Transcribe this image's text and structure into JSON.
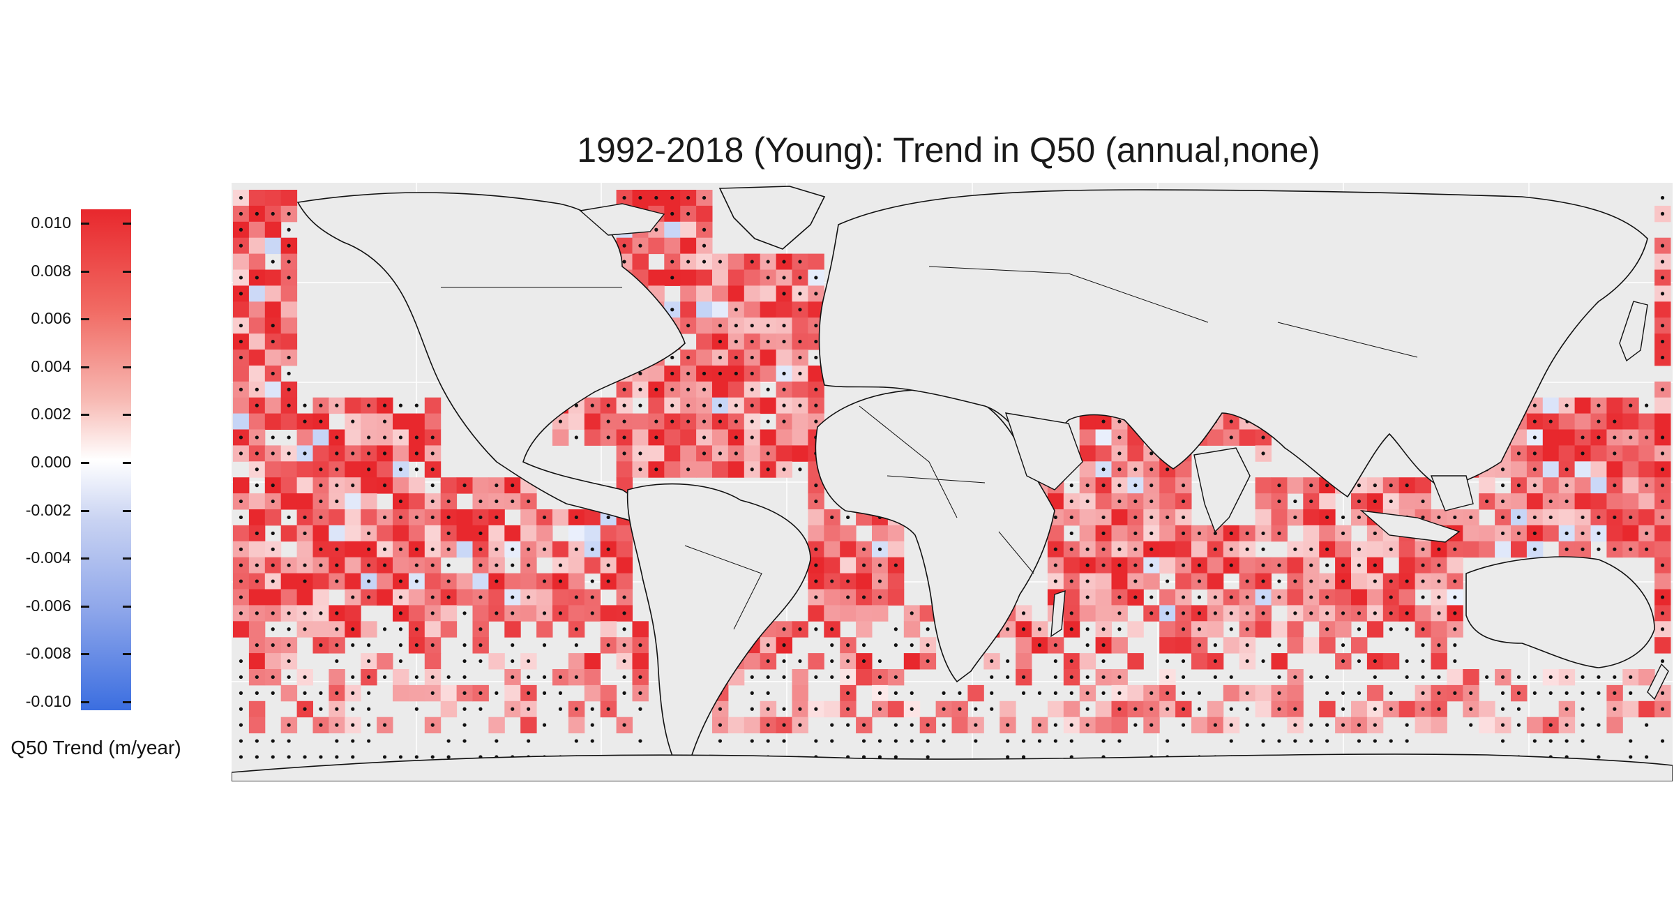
{
  "title": "1992-2018 (Young): Trend in Q50 (annual,none)",
  "legend": {
    "title": "Q50 Trend (m/year)",
    "ticks": [
      "0.010",
      "0.008",
      "0.006",
      "0.004",
      "0.002",
      "0.000",
      "-0.002",
      "-0.004",
      "-0.006",
      "-0.008",
      "-0.010"
    ],
    "range": [
      -0.01,
      0.01
    ],
    "colors": {
      "high": "#e8282d",
      "mid": "#ffffff",
      "low": "#3b6ee0"
    }
  },
  "map": {
    "background": "#ebebeb",
    "land_color": "#ebebeb",
    "coastline_color": "#111111",
    "gridline_color": "#ffffff",
    "significance_marker": "black dot",
    "grid_cells": "ocean cells colored by Q50 trend; dots mark significant trends"
  }
}
